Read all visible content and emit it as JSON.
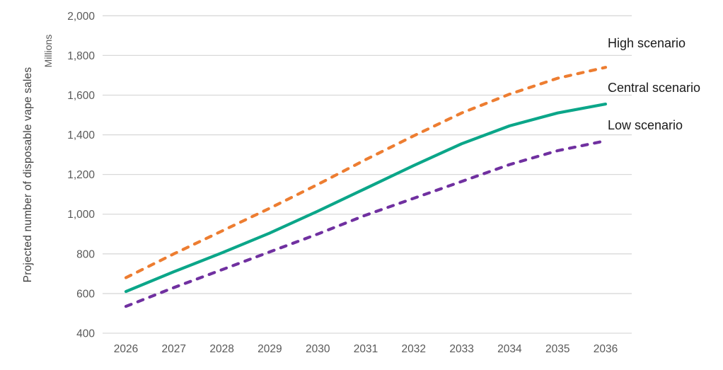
{
  "chart_data": {
    "type": "line",
    "title": "",
    "ylabel": "Projected number of disposable vape sales",
    "units_label": "Millions",
    "xlabel": "",
    "categories": [
      2026,
      2027,
      2028,
      2029,
      2030,
      2031,
      2032,
      2033,
      2034,
      2035,
      2036
    ],
    "ylim": [
      400,
      2000
    ],
    "grid": "horizontal",
    "legend_position": "direct-labels-right",
    "y_ticks": [
      {
        "value": 400,
        "label": "400"
      },
      {
        "value": 600,
        "label": "600"
      },
      {
        "value": 800,
        "label": "800"
      },
      {
        "value": 1000,
        "label": "1,000"
      },
      {
        "value": 1200,
        "label": "1,200"
      },
      {
        "value": 1400,
        "label": "1,400"
      },
      {
        "value": 1600,
        "label": "1,600"
      },
      {
        "value": 1800,
        "label": "1,800"
      },
      {
        "value": 2000,
        "label": "2,000"
      }
    ],
    "series": [
      {
        "name": "High scenario",
        "color": "#ED7D31",
        "style": "dashed",
        "values": [
          680,
          800,
          915,
          1030,
          1150,
          1275,
          1395,
          1510,
          1605,
          1685,
          1740
        ]
      },
      {
        "name": "Central scenario",
        "color": "#0BA689",
        "style": "solid",
        "values": [
          610,
          710,
          805,
          905,
          1015,
          1130,
          1245,
          1355,
          1445,
          1510,
          1555
        ]
      },
      {
        "name": "Low scenario",
        "color": "#7030A0",
        "style": "dashed",
        "values": [
          535,
          630,
          720,
          810,
          900,
          995,
          1080,
          1165,
          1250,
          1320,
          1370
        ]
      }
    ],
    "colors": {
      "gridline": "#D9D9D9",
      "tick_text": "#595959",
      "axis_title_text": "#404040",
      "label_text": "#1a1a1a"
    }
  }
}
